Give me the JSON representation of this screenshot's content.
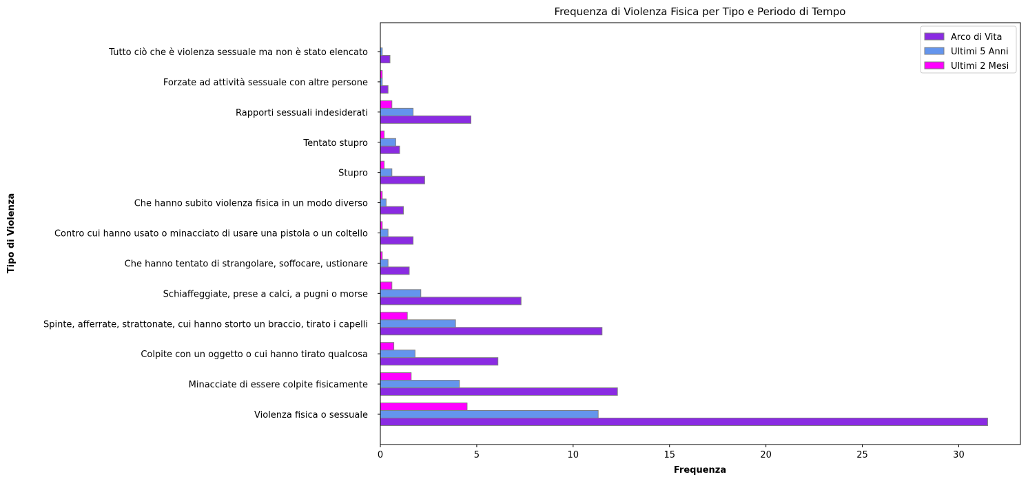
{
  "chart_data": {
    "type": "bar",
    "orientation": "horizontal",
    "title": "Frequenza di Violenza Fisica per Tipo e Periodo di Tempo",
    "xlabel": "Frequenza",
    "ylabel": "Tipo di Violenza",
    "xlim": [
      0,
      33.2
    ],
    "xticks": [
      0,
      5,
      10,
      15,
      20,
      25,
      30
    ],
    "grid": false,
    "legend_position": "top-right",
    "categories": [
      "Violenza fisica o sessuale",
      "Minacciate di essere colpite fisicamente",
      "Colpite con un oggetto o cui hanno tirato qualcosa",
      "Spinte, afferrate, strattonate, cui hanno storto un braccio, tirato i capelli",
      "Schiaffeggiate, prese a calci, a pugni o morse",
      "Che hanno tentato di strangolare, soffocare, ustionare",
      "Contro cui hanno usato o minacciato di usare una pistola o un coltello",
      "Che hanno subito violenza fisica in un modo diverso",
      "Stupro",
      "Tentato stupro",
      "Rapporti sessuali indesiderati",
      "Forzate ad attività sessuale con altre persone",
      "Tutto ciò che è violenza sessuale ma non è stato elencato"
    ],
    "series": [
      {
        "name": "Arco di Vita",
        "color": "#8a2be2",
        "values": [
          31.5,
          12.3,
          6.1,
          11.5,
          7.3,
          1.5,
          1.7,
          1.2,
          2.3,
          1.0,
          4.7,
          0.4,
          0.5
        ]
      },
      {
        "name": "Ultimi 5 Anni",
        "color": "#6495ed",
        "values": [
          11.3,
          4.1,
          1.8,
          3.9,
          2.1,
          0.4,
          0.4,
          0.3,
          0.6,
          0.8,
          1.7,
          0.1,
          0.1
        ]
      },
      {
        "name": "Ultimi 2 Mesi",
        "color": "#ff00ff",
        "values": [
          4.5,
          1.6,
          0.7,
          1.4,
          0.6,
          0.1,
          0.1,
          0.1,
          0.2,
          0.2,
          0.6,
          0.1,
          0.0
        ]
      }
    ]
  }
}
